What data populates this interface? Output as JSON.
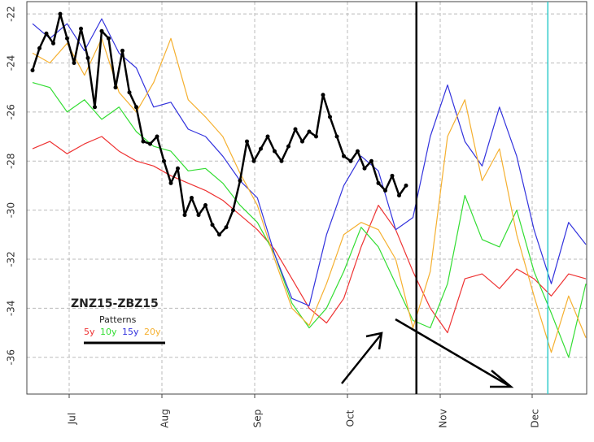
{
  "chart_data": {
    "type": "line",
    "title": "ZNZ15-ZBZ15",
    "legend_title": "Patterns",
    "legend_position": "bottom-left",
    "ylim": [
      -37.5,
      -21.5
    ],
    "y_ticks": [
      -22,
      -24,
      -26,
      -28,
      -30,
      -32,
      -34,
      -36
    ],
    "y_tick_labels": [
      "-22",
      "-24",
      "-26",
      "-28",
      "-30",
      "-32",
      "-34",
      "-36"
    ],
    "x_ticks": [
      "Jul",
      "Aug",
      "Sep",
      "Oct",
      "Nov",
      "Dec"
    ],
    "grid": true,
    "colors": {
      "5y": "#ee3333",
      "10y": "#33dd33",
      "15y": "#3333dd",
      "20y": "#f5b030",
      "actual": "#000000",
      "marker": "#33cccc"
    },
    "series": [
      {
        "name": "5y",
        "key": "5y",
        "x": [
          0,
          5,
          10,
          15,
          20,
          25,
          30,
          35,
          40,
          45,
          50,
          55,
          60,
          65,
          70,
          75,
          80,
          85,
          90,
          95,
          100,
          105,
          110,
          115,
          120,
          125,
          130,
          135,
          140,
          145,
          150,
          155,
          160
        ],
        "y": [
          -27.5,
          -27.2,
          -27.7,
          -27.3,
          -27.0,
          -27.6,
          -28.0,
          -28.2,
          -28.6,
          -28.9,
          -29.2,
          -29.6,
          -30.2,
          -30.8,
          -31.6,
          -32.8,
          -34.0,
          -34.6,
          -33.6,
          -31.5,
          -29.8,
          -30.8,
          -32.5,
          -34.0,
          -35.0,
          -32.8,
          -32.6,
          -33.2,
          -32.4,
          -32.8,
          -33.5,
          -32.6,
          -32.8
        ]
      },
      {
        "name": "10y",
        "key": "10y",
        "x": [
          0,
          5,
          10,
          15,
          20,
          25,
          30,
          35,
          40,
          45,
          50,
          55,
          60,
          65,
          70,
          75,
          80,
          85,
          90,
          95,
          100,
          105,
          110,
          115,
          120,
          125,
          130,
          135,
          140,
          145,
          150,
          155,
          160
        ],
        "y": [
          -24.8,
          -25.0,
          -26.0,
          -25.5,
          -26.3,
          -25.8,
          -26.8,
          -27.4,
          -27.6,
          -28.4,
          -28.3,
          -28.9,
          -29.8,
          -30.5,
          -31.8,
          -33.8,
          -34.8,
          -34.0,
          -32.5,
          -30.7,
          -31.5,
          -33.0,
          -34.5,
          -34.8,
          -33.0,
          -29.4,
          -31.2,
          -31.5,
          -30.0,
          -32.5,
          -34.2,
          -36.0,
          -33.0
        ]
      },
      {
        "name": "15y",
        "key": "15y",
        "x": [
          0,
          5,
          10,
          15,
          20,
          25,
          30,
          35,
          40,
          45,
          50,
          55,
          60,
          65,
          70,
          75,
          80,
          85,
          90,
          95,
          100,
          105,
          110,
          115,
          120,
          125,
          130,
          135,
          140,
          145,
          150,
          155,
          160
        ],
        "y": [
          -22.4,
          -23.0,
          -22.4,
          -23.5,
          -22.2,
          -23.6,
          -24.2,
          -25.8,
          -25.6,
          -26.7,
          -27.0,
          -27.8,
          -28.8,
          -29.5,
          -31.8,
          -33.6,
          -33.9,
          -31.0,
          -29.0,
          -27.8,
          -28.4,
          -30.8,
          -30.3,
          -27.0,
          -24.9,
          -27.2,
          -28.2,
          -25.8,
          -27.8,
          -30.8,
          -33.0,
          -30.5,
          -31.4
        ]
      },
      {
        "name": "20y",
        "key": "20y",
        "x": [
          0,
          5,
          10,
          15,
          20,
          25,
          30,
          35,
          40,
          45,
          50,
          55,
          60,
          65,
          70,
          75,
          80,
          85,
          90,
          95,
          100,
          105,
          110,
          115,
          120,
          125,
          130,
          135,
          140,
          145,
          150,
          155,
          160
        ],
        "y": [
          -23.6,
          -24.0,
          -23.2,
          -24.5,
          -23.0,
          -25.2,
          -26.0,
          -24.8,
          -23.0,
          -25.5,
          -26.2,
          -27.0,
          -28.5,
          -29.8,
          -32.0,
          -34.0,
          -34.7,
          -33.0,
          -31.0,
          -30.5,
          -30.8,
          -32.0,
          -34.8,
          -32.5,
          -27.0,
          -25.5,
          -28.8,
          -27.5,
          -31.0,
          -33.5,
          -35.8,
          -33.5,
          -35.2
        ]
      },
      {
        "name": "ZNZ15-ZBZ15",
        "key": "actual",
        "x": [
          0,
          2,
          4,
          6,
          8,
          10,
          12,
          14,
          16,
          18,
          20,
          22,
          24,
          26,
          28,
          30,
          32,
          34,
          36,
          38,
          40,
          42,
          44,
          46,
          48,
          50,
          52,
          54,
          56,
          58,
          60,
          62,
          64,
          66,
          68,
          70,
          72,
          74,
          76,
          78,
          80,
          82,
          84,
          86,
          88,
          90,
          92,
          94,
          96,
          98,
          100,
          102,
          104,
          106,
          108
        ],
        "y": [
          -24.3,
          -23.4,
          -22.8,
          -23.2,
          -22.0,
          -23.0,
          -24.0,
          -22.6,
          -23.8,
          -25.8,
          -22.7,
          -23.0,
          -25.0,
          -23.5,
          -25.2,
          -25.8,
          -27.2,
          -27.3,
          -27.0,
          -28.0,
          -28.9,
          -28.3,
          -30.2,
          -29.5,
          -30.2,
          -29.8,
          -30.6,
          -31.0,
          -30.7,
          -30.0,
          -28.8,
          -27.2,
          -28.0,
          -27.5,
          -27.0,
          -27.6,
          -28.0,
          -27.4,
          -26.7,
          -27.2,
          -26.8,
          -27.0,
          -25.3,
          -26.2,
          -27.0,
          -27.8,
          -28.0,
          -27.6,
          -28.3,
          -28.0,
          -28.9,
          -29.2,
          -28.6,
          -29.4,
          -29.0
        ]
      }
    ],
    "annotations": {
      "divider_x": 111,
      "marker_x": 149
    }
  }
}
